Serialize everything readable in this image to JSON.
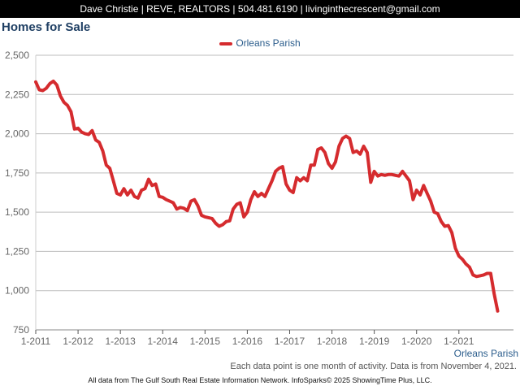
{
  "header": {
    "text": "Dave Christie | REVE, REALTORS | 504.481.6190 | livinginthecrescent@gmail.com"
  },
  "colors": {
    "series": "#d52b2e",
    "title": "#1f3f63",
    "legend_text": "#2b5d8c",
    "grid": "#bdbdbd"
  },
  "chart_data": {
    "type": "line",
    "title": "Homes for Sale",
    "xlabel": "",
    "ylabel": "",
    "ylim": [
      750,
      2500
    ],
    "yticks": [
      750,
      1000,
      1250,
      1500,
      1750,
      2000,
      2250,
      2500
    ],
    "ytick_labels": [
      "750",
      "1,000",
      "1,250",
      "1,500",
      "1,750",
      "2,000",
      "2,250",
      "2,500"
    ],
    "xticks": [
      "1-2011",
      "1-2012",
      "1-2013",
      "1-2014",
      "1-2015",
      "1-2016",
      "1-2017",
      "1-2018",
      "1-2019",
      "1-2020",
      "1-2021"
    ],
    "grid": true,
    "legend_position": "top-center",
    "series": [
      {
        "name": "Orleans Parish",
        "x_start": "1-2011",
        "values": [
          2330,
          2280,
          2275,
          2290,
          2320,
          2335,
          2310,
          2240,
          2200,
          2180,
          2140,
          2030,
          2035,
          2010,
          2000,
          1995,
          2020,
          1960,
          1945,
          1890,
          1800,
          1780,
          1700,
          1620,
          1610,
          1650,
          1610,
          1640,
          1600,
          1590,
          1640,
          1650,
          1710,
          1670,
          1680,
          1600,
          1595,
          1580,
          1570,
          1560,
          1520,
          1530,
          1525,
          1510,
          1570,
          1580,
          1540,
          1480,
          1470,
          1465,
          1460,
          1430,
          1410,
          1420,
          1440,
          1445,
          1520,
          1550,
          1560,
          1470,
          1500,
          1580,
          1630,
          1600,
          1620,
          1600,
          1650,
          1700,
          1760,
          1780,
          1790,
          1680,
          1640,
          1625,
          1720,
          1700,
          1720,
          1700,
          1800,
          1800,
          1900,
          1910,
          1880,
          1810,
          1780,
          1820,
          1920,
          1970,
          1985,
          1970,
          1880,
          1890,
          1870,
          1920,
          1880,
          1690,
          1760,
          1730,
          1740,
          1735,
          1740,
          1740,
          1735,
          1730,
          1760,
          1730,
          1700,
          1580,
          1640,
          1610,
          1670,
          1620,
          1570,
          1500,
          1490,
          1440,
          1410,
          1415,
          1370,
          1270,
          1220,
          1200,
          1170,
          1150,
          1100,
          1090,
          1095,
          1100,
          1110,
          1110,
          980,
          870
        ]
      }
    ]
  },
  "region_label": "Orleans Parish",
  "note": "Each data point is one month of activity. Data is from November 4, 2021.",
  "footer": "All data from The Gulf South Real Estate Information Network. InfoSparks© 2025 ShowingTime Plus, LLC."
}
